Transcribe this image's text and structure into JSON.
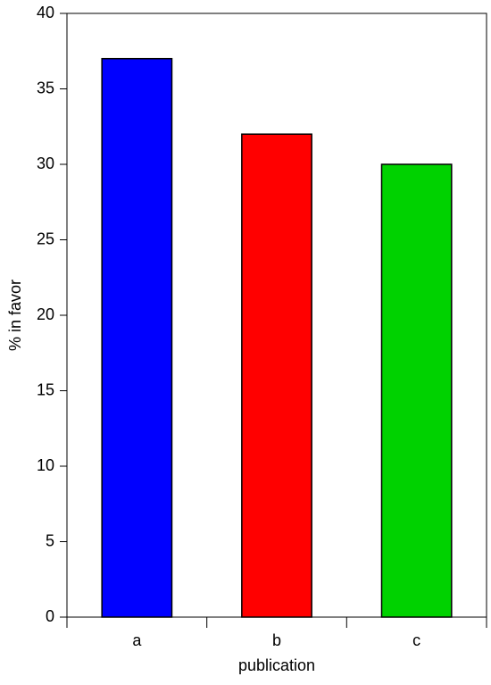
{
  "chart_data": {
    "type": "bar",
    "categories": [
      "a",
      "b",
      "c"
    ],
    "values": [
      37,
      32,
      30
    ],
    "colors": [
      "#0000ff",
      "#ff0000",
      "#00d200"
    ],
    "xlabel": "publication",
    "ylabel": "% in favor",
    "ylim": [
      0,
      40
    ],
    "yticks": [
      0,
      5,
      10,
      15,
      20,
      25,
      30,
      35,
      40
    ],
    "grid": false
  }
}
